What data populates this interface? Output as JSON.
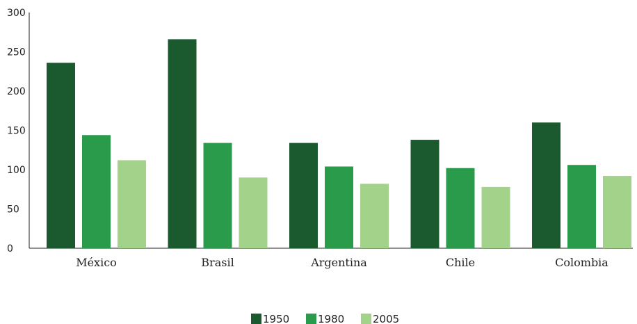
{
  "chart_data": {
    "type": "bar",
    "title": "",
    "xlabel": "",
    "ylabel": "",
    "categories": [
      "México",
      "Brasil",
      "Argentina",
      "Chile",
      "Colombia"
    ],
    "series": [
      {
        "name": "1950",
        "color": "#1a5a2e",
        "values": [
          236,
          266,
          134,
          138,
          160
        ]
      },
      {
        "name": "1980",
        "color": "#2a9a4b",
        "values": [
          144,
          134,
          104,
          102,
          106
        ]
      },
      {
        "name": "2005",
        "color": "#a3d38a",
        "values": [
          112,
          90,
          82,
          78,
          92
        ]
      }
    ],
    "ylim": [
      0,
      300
    ],
    "yticks": [
      0,
      50,
      100,
      150,
      200,
      250,
      300
    ],
    "grid": false,
    "legend_position": "bottom-center"
  }
}
